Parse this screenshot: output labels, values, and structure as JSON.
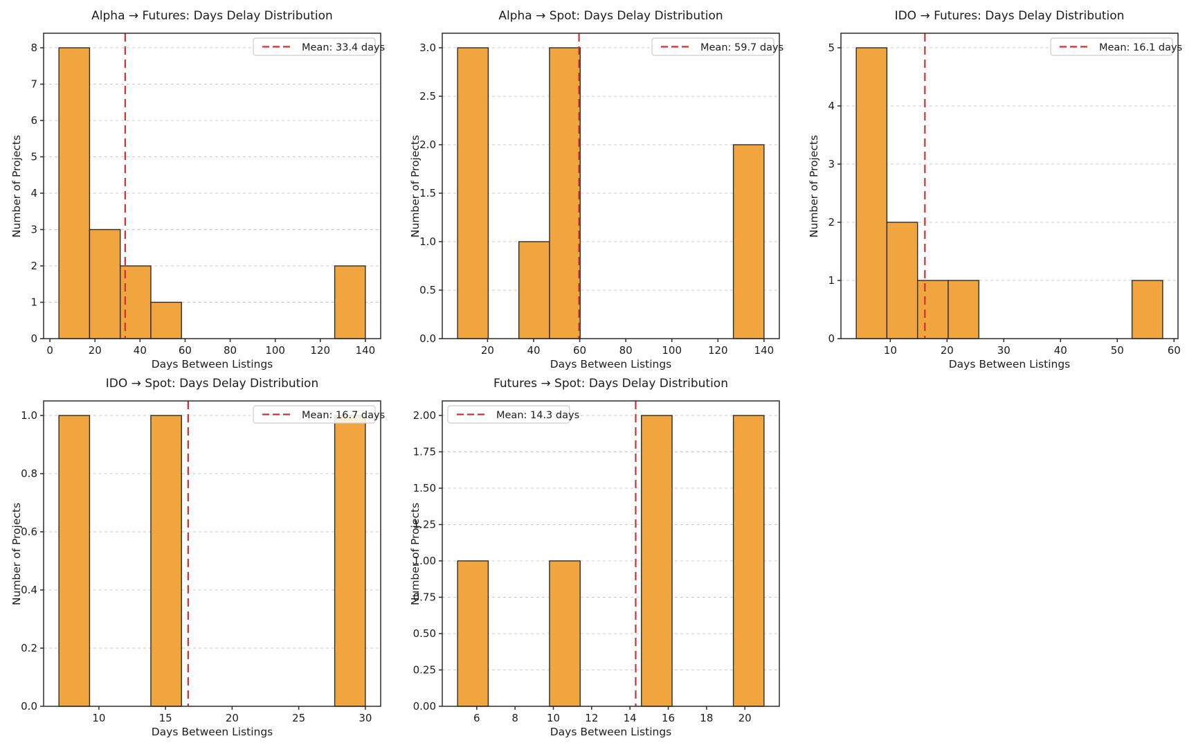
{
  "figure": {
    "background": "#ffffff"
  },
  "colors": {
    "bar_fill": "#F0A53E",
    "bar_edge": "#2b2b2b",
    "mean_line": "#d32f2f",
    "grid": "#c9c9c9",
    "spine": "#2b2b2b",
    "text": "#1c1c1c",
    "legend_border": "#cccccc",
    "legend_fill": "rgba(255,255,255,0.85)"
  },
  "chart_data": [
    {
      "id": "alpha-futures",
      "type": "bar",
      "title": "Alpha → Futures: Days Delay Distribution",
      "xlabel": "Days Between Listings",
      "ylabel": "Number of Projects",
      "legend": {
        "label": "Mean: 33.4 days",
        "position": "upper-right"
      },
      "mean_days": 33.4,
      "bins": {
        "start": 4,
        "width": 13.6,
        "counts": [
          8,
          3,
          2,
          1,
          0,
          0,
          0,
          0,
          0,
          2
        ]
      },
      "xlim": [
        -2.8,
        146.8
      ],
      "xticks": [
        0,
        20,
        40,
        60,
        80,
        100,
        120,
        140
      ],
      "ylim": [
        0,
        8.4
      ],
      "ytick_values": [
        0,
        1,
        2,
        3,
        4,
        5,
        6,
        7,
        8
      ],
      "ytick_labels": [
        "0",
        "1",
        "2",
        "3",
        "4",
        "5",
        "6",
        "7",
        "8"
      ],
      "grid": "y-dashed"
    },
    {
      "id": "alpha-spot",
      "type": "bar",
      "title": "Alpha → Spot: Days Delay Distribution",
      "xlabel": "Days Between Listings",
      "ylabel": "Number of Projects",
      "legend": {
        "label": "Mean: 59.7 days",
        "position": "upper-right"
      },
      "mean_days": 59.7,
      "bins": {
        "start": 7,
        "width": 13.3,
        "counts": [
          3,
          0,
          1,
          3,
          0,
          0,
          0,
          0,
          0,
          2
        ]
      },
      "xlim": [
        0.35,
        146.65
      ],
      "xticks": [
        20,
        40,
        60,
        80,
        100,
        120,
        140
      ],
      "ylim": [
        0,
        3.15
      ],
      "ytick_values": [
        0,
        0.5,
        1,
        1.5,
        2,
        2.5,
        3
      ],
      "ytick_labels": [
        "0.0",
        "0.5",
        "1.0",
        "1.5",
        "2.0",
        "2.5",
        "3.0"
      ],
      "grid": "y-dashed"
    },
    {
      "id": "ido-futures",
      "type": "bar",
      "title": "IDO → Futures: Days Delay Distribution",
      "xlabel": "Days Between Listings",
      "ylabel": "Number of Projects",
      "legend": {
        "label": "Mean: 16.1 days",
        "position": "upper-right"
      },
      "mean_days": 16.1,
      "bins": {
        "start": 4,
        "width": 5.4,
        "counts": [
          5,
          2,
          1,
          1,
          0,
          0,
          0,
          0,
          0,
          1
        ]
      },
      "xlim": [
        1.3,
        60.7
      ],
      "xticks": [
        10,
        20,
        30,
        40,
        50,
        60
      ],
      "ylim": [
        0,
        5.25
      ],
      "ytick_values": [
        0,
        1,
        2,
        3,
        4,
        5
      ],
      "ytick_labels": [
        "0",
        "1",
        "2",
        "3",
        "4",
        "5"
      ],
      "grid": "y-dashed"
    },
    {
      "id": "ido-spot",
      "type": "bar",
      "title": "IDO → Spot: Days Delay Distribution",
      "xlabel": "Days Between Listings",
      "ylabel": "Number of Projects",
      "legend": {
        "label": "Mean: 16.7 days",
        "position": "upper-right"
      },
      "mean_days": 16.7,
      "bins": {
        "start": 7,
        "width": 2.3,
        "counts": [
          1,
          0,
          0,
          1,
          0,
          0,
          0,
          0,
          0,
          1
        ]
      },
      "xlim": [
        5.85,
        31.15
      ],
      "xticks": [
        10,
        15,
        20,
        25,
        30
      ],
      "ylim": [
        0,
        1.05
      ],
      "ytick_values": [
        0,
        0.2,
        0.4,
        0.6,
        0.8,
        1
      ],
      "ytick_labels": [
        "0.0",
        "0.2",
        "0.4",
        "0.6",
        "0.8",
        "1.0"
      ],
      "grid": "y-dashed"
    },
    {
      "id": "futures-spot",
      "type": "bar",
      "title": "Futures → Spot: Days Delay Distribution",
      "xlabel": "Days Between Listings",
      "ylabel": "Number of Projects",
      "legend": {
        "label": "Mean: 14.3 days",
        "position": "upper-left"
      },
      "mean_days": 14.3,
      "bins": {
        "start": 5,
        "width": 1.6,
        "counts": [
          1,
          0,
          0,
          1,
          0,
          0,
          2,
          0,
          0,
          2
        ]
      },
      "xlim": [
        4.2,
        21.8
      ],
      "xticks": [
        6,
        8,
        10,
        12,
        14,
        16,
        18,
        20
      ],
      "ylim": [
        0,
        2.1
      ],
      "ytick_values": [
        0,
        0.25,
        0.5,
        0.75,
        1,
        1.25,
        1.5,
        1.75,
        2
      ],
      "ytick_labels": [
        "0.00",
        "0.25",
        "0.50",
        "0.75",
        "1.00",
        "1.25",
        "1.50",
        "1.75",
        "2.00"
      ],
      "grid": "y-dashed"
    }
  ]
}
